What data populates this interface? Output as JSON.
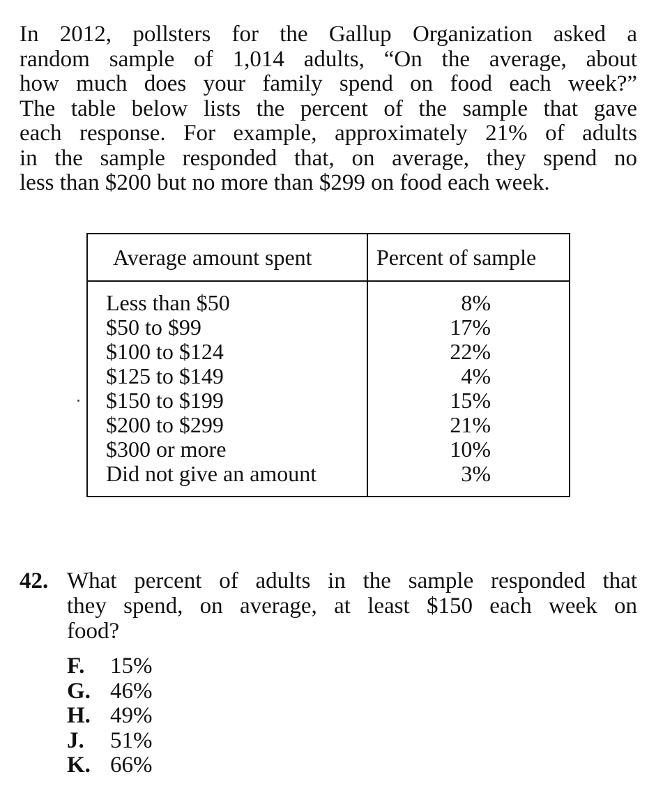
{
  "intro": {
    "lines": [
      "In 2012, pollsters for the Gallup Organization asked a",
      "random sample of 1,014 adults, “On the average, about",
      "how much does your family spend on food each week?”",
      "The table below lists the percent of the sample that gave",
      "each response. For example, approximately 21% of adults",
      "in the sample responded that, on average, they spend no",
      "less than $200 but no more than $299 on food each week."
    ]
  },
  "table": {
    "headers": [
      "Average amount spent",
      "Percent of sample"
    ],
    "rows": [
      {
        "amount": "Less than $50",
        "percent": "8%"
      },
      {
        "amount": "$50 to $99",
        "percent": "17%"
      },
      {
        "amount": "$100 to $124",
        "percent": "22%"
      },
      {
        "amount": "$125 to $149",
        "percent": "4%"
      },
      {
        "amount": "$150 to $199",
        "percent": "15%"
      },
      {
        "amount": "$200 to $299",
        "percent": "21%"
      },
      {
        "amount": "$300 or more",
        "percent": "10%"
      },
      {
        "amount": "Did not give an amount",
        "percent": "3%"
      }
    ]
  },
  "question": {
    "number": "42.",
    "lines": [
      "What percent of adults in the sample responded that",
      "they spend, on average, at least $150 each week on",
      "food?"
    ],
    "choices": [
      {
        "letter": "F.",
        "text": "15%"
      },
      {
        "letter": "G.",
        "text": "46%"
      },
      {
        "letter": "H.",
        "text": "49%"
      },
      {
        "letter": "J.",
        "text": "51%"
      },
      {
        "letter": "K.",
        "text": "66%"
      }
    ]
  }
}
